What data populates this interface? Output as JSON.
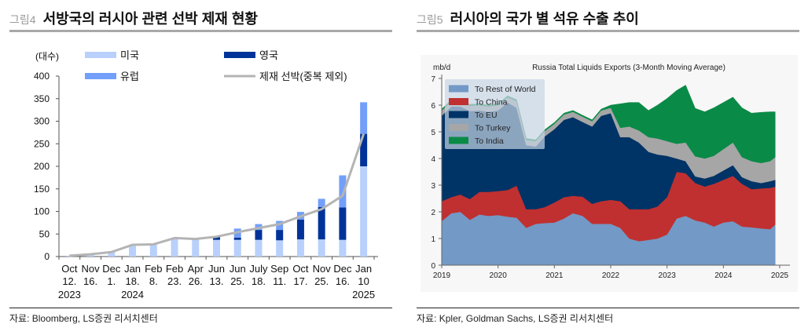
{
  "left_figure": {
    "fig_label": "그림4",
    "title": "서방국의 러시아 관련 선박 제재 현황",
    "source": "자료: Bloomberg, LS증권 리서치센터"
  },
  "right_figure": {
    "fig_label": "그림5",
    "title": "러시아의 국가 별 석유 수출 추이",
    "source": "자료: Kpler, Goldman Sachs, LS증권 리서치센터"
  },
  "chart_data": [
    {
      "type": "bar",
      "stacked": true,
      "title": "서방국의 러시아 관련 선박 제재 현황",
      "ylabel": "(대수)",
      "xlabel": "",
      "ylim": [
        0,
        400
      ],
      "yticks": [
        0,
        50,
        100,
        150,
        200,
        250,
        300,
        350,
        400
      ],
      "grid": false,
      "legend_position": "top",
      "categories": [
        {
          "month": "Oct",
          "day": "12.",
          "year": "2023"
        },
        {
          "month": "Nov",
          "day": "16.",
          "year": ""
        },
        {
          "month": "Dec",
          "day": "1.",
          "year": ""
        },
        {
          "month": "Jan",
          "day": "18.",
          "year": "2024"
        },
        {
          "month": "Feb",
          "day": "8.",
          "year": ""
        },
        {
          "month": "Feb",
          "day": "23.",
          "year": ""
        },
        {
          "month": "Apr",
          "day": "26.",
          "year": ""
        },
        {
          "month": "Jun",
          "day": "13.",
          "year": ""
        },
        {
          "month": "Jun",
          "day": "25.",
          "year": ""
        },
        {
          "month": "July",
          "day": "18.",
          "year": ""
        },
        {
          "month": "Sep",
          "day": "11.",
          "year": ""
        },
        {
          "month": "Oct",
          "day": "17.",
          "year": ""
        },
        {
          "month": "Nov",
          "day": "25.",
          "year": ""
        },
        {
          "month": "Dec",
          "day": "16.",
          "year": ""
        },
        {
          "month": "Jan",
          "day": "10",
          "year": "2025"
        }
      ],
      "series": [
        {
          "name": "미국",
          "color": "#b8d0fb",
          "kind": "bar",
          "values": [
            2,
            5,
            10,
            26,
            27,
            40,
            39,
            37,
            37,
            37,
            36,
            38,
            38,
            37,
            200
          ]
        },
        {
          "name": "영국",
          "color": "#003399",
          "kind": "bar",
          "values": [
            0,
            0,
            0,
            0,
            0,
            0,
            0,
            7,
            5,
            22,
            23,
            44,
            72,
            72,
            72
          ]
        },
        {
          "name": "유럽",
          "color": "#739ffa",
          "kind": "bar",
          "values": [
            0,
            0,
            0,
            0,
            0,
            0,
            0,
            0,
            20,
            13,
            20,
            17,
            18,
            71,
            70
          ]
        },
        {
          "name": "제재 선박(중복 제외)",
          "color": "#b4b4b4",
          "kind": "line",
          "values": [
            2,
            5,
            10,
            26,
            27,
            41,
            39,
            44,
            54,
            63,
            72,
            89,
            105,
            135,
            272
          ]
        }
      ],
      "legend_order": [
        0,
        1,
        2,
        3
      ]
    },
    {
      "type": "area",
      "stacked": true,
      "title": "Russia Total Liquids Exports (3-Month Moving Average)",
      "ylabel": "mb/d",
      "xlabel": "",
      "xlim": [
        2019.0,
        2025.0
      ],
      "ylim": [
        0,
        7
      ],
      "xticks": [
        "2019",
        "2020",
        "2021",
        "2022",
        "2023",
        "2024",
        "2025"
      ],
      "yticks": [
        0,
        1,
        2,
        3,
        4,
        5,
        6,
        7
      ],
      "grid": false,
      "legend_position": "top-left",
      "x": [
        2019.0,
        2019.17,
        2019.33,
        2019.5,
        2019.67,
        2019.83,
        2020.0,
        2020.17,
        2020.33,
        2020.5,
        2020.67,
        2020.83,
        2021.0,
        2021.17,
        2021.33,
        2021.5,
        2021.67,
        2021.83,
        2022.0,
        2022.17,
        2022.33,
        2022.5,
        2022.67,
        2022.83,
        2023.0,
        2023.17,
        2023.33,
        2023.5,
        2023.67,
        2023.83,
        2024.0,
        2024.17,
        2024.33,
        2024.5,
        2024.67,
        2024.83,
        2024.92
      ],
      "series": [
        {
          "name": "To Rest of World",
          "color": "#7399c6",
          "values": [
            1.65,
            1.95,
            2.0,
            1.7,
            1.9,
            1.85,
            1.88,
            1.82,
            1.78,
            1.4,
            1.55,
            1.58,
            1.6,
            1.75,
            1.95,
            1.85,
            1.55,
            1.55,
            1.55,
            1.4,
            1.0,
            0.9,
            0.95,
            1.0,
            1.15,
            1.75,
            1.85,
            1.68,
            1.6,
            1.45,
            1.6,
            1.65,
            1.45,
            1.42,
            1.38,
            1.35,
            1.52
          ]
        },
        {
          "name": "To China",
          "color": "#c03030",
          "values": [
            0.75,
            0.6,
            0.65,
            0.78,
            0.85,
            0.9,
            0.9,
            1.0,
            1.2,
            0.7,
            0.55,
            0.6,
            0.75,
            0.8,
            0.65,
            0.72,
            0.75,
            0.85,
            0.9,
            1.0,
            1.1,
            1.2,
            1.15,
            1.2,
            1.4,
            1.75,
            1.6,
            1.4,
            1.35,
            1.6,
            1.6,
            1.7,
            1.6,
            1.43,
            1.5,
            1.55,
            1.42
          ]
        },
        {
          "name": "To EU",
          "color": "#003366",
          "values": [
            3.2,
            3.4,
            3.3,
            3.3,
            3.05,
            3.0,
            3.02,
            3.28,
            2.92,
            2.4,
            2.35,
            2.65,
            2.75,
            2.9,
            2.95,
            2.8,
            2.9,
            3.2,
            3.25,
            2.4,
            2.7,
            2.5,
            2.15,
            1.95,
            1.55,
            0.5,
            0.45,
            0.25,
            0.3,
            0.3,
            0.35,
            0.4,
            0.25,
            0.3,
            0.2,
            0.25,
            0.26
          ]
        },
        {
          "name": "To Turkey",
          "color": "#a6a6a6",
          "values": [
            0.2,
            0.2,
            0.2,
            0.2,
            0.2,
            0.2,
            0.2,
            0.2,
            0.25,
            0.2,
            0.2,
            0.2,
            0.2,
            0.2,
            0.2,
            0.2,
            0.2,
            0.2,
            0.2,
            0.35,
            0.4,
            0.45,
            0.55,
            0.6,
            0.55,
            0.55,
            0.7,
            0.75,
            0.75,
            0.75,
            0.8,
            0.85,
            0.75,
            0.75,
            0.75,
            0.75,
            0.85
          ]
        },
        {
          "name": "To India",
          "color": "#0a8a47",
          "values": [
            0.05,
            0.05,
            0.05,
            0.05,
            0.05,
            0.05,
            0.05,
            0.05,
            0.05,
            0.05,
            0.05,
            0.05,
            0.05,
            0.05,
            0.05,
            0.05,
            0.05,
            0.05,
            0.1,
            0.9,
            0.9,
            1.05,
            1.0,
            1.25,
            1.6,
            2.0,
            2.15,
            1.8,
            1.75,
            1.8,
            1.75,
            1.7,
            1.85,
            1.8,
            1.9,
            1.85,
            1.7
          ]
        }
      ]
    }
  ]
}
